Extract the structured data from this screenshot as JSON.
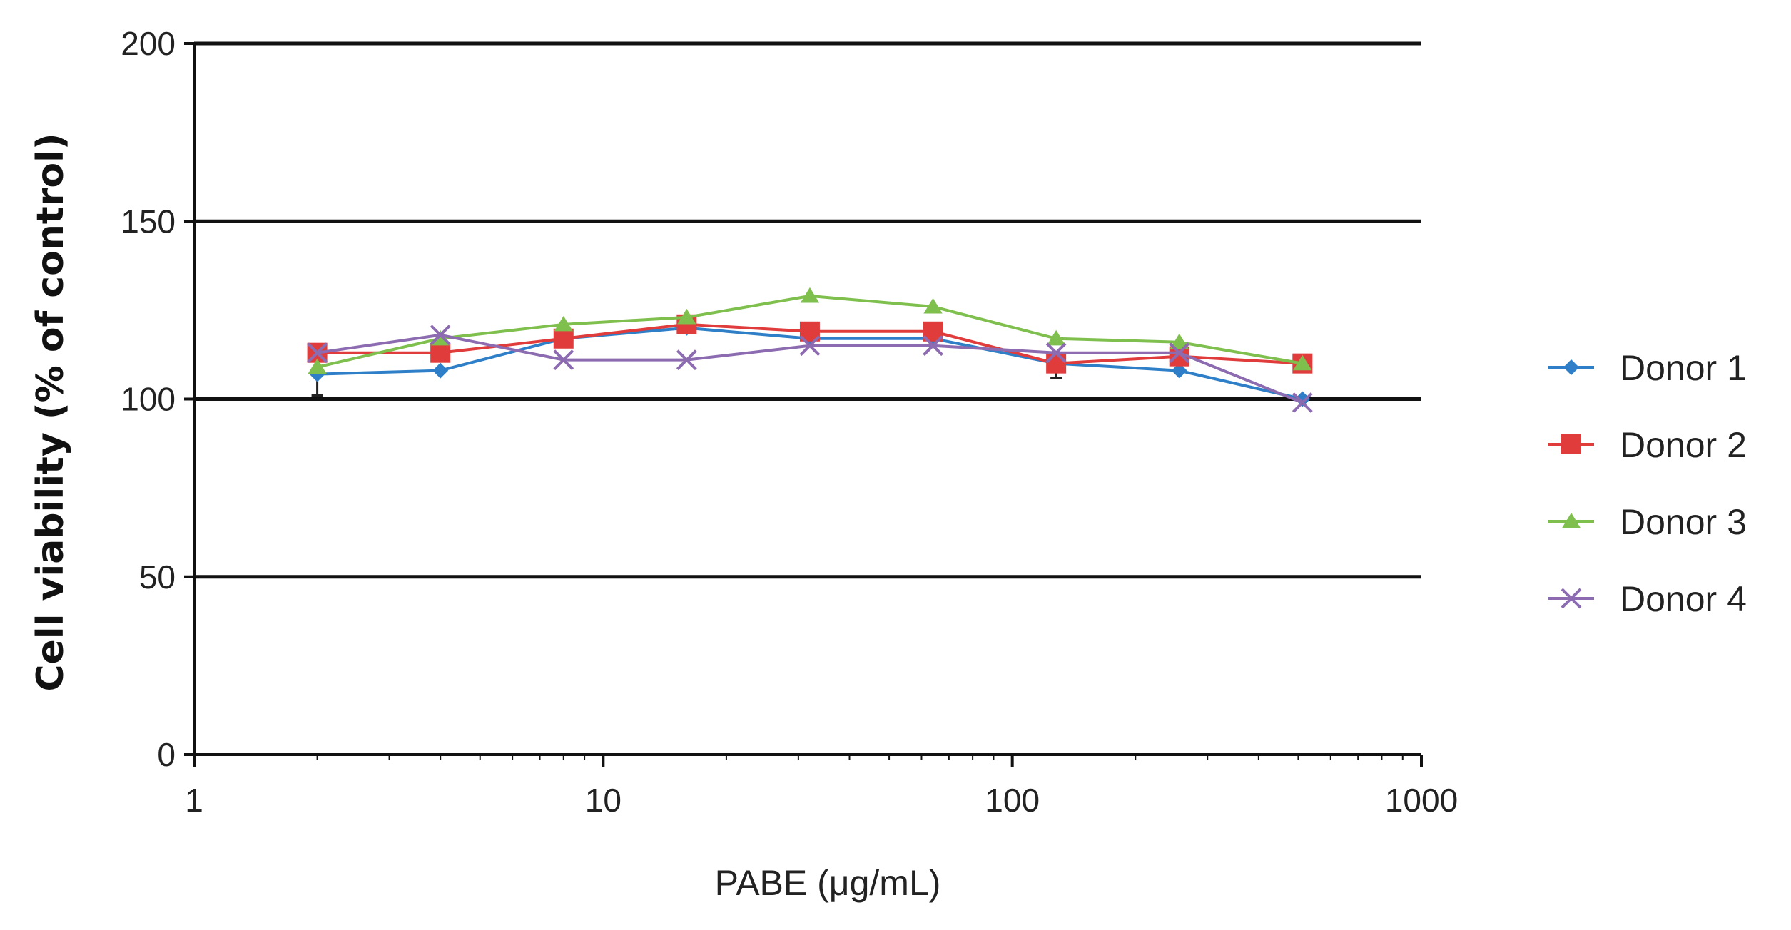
{
  "chart_data": {
    "type": "line",
    "title": "",
    "xlabel": "PABE (μg/mL)",
    "ylabel": "Cell viability (% of control)",
    "xscale": "log",
    "xlim": [
      1,
      1000
    ],
    "ylim": [
      0,
      200
    ],
    "xticks": [
      1,
      10,
      100,
      1000
    ],
    "xtick_labels": [
      "1",
      "10",
      "100",
      "1000"
    ],
    "yticks": [
      0,
      50,
      100,
      150,
      200
    ],
    "ytick_labels": [
      "0",
      "50",
      "100",
      "150",
      "200"
    ],
    "grid": "horizontal",
    "legend_position": "right",
    "series": [
      {
        "name": "Donor 1",
        "color": "#2e7fc7",
        "marker": "diamond",
        "x": [
          2,
          4,
          8,
          16,
          32,
          64,
          128,
          256,
          512
        ],
        "y": [
          107,
          108,
          117,
          120,
          117,
          117,
          110,
          108,
          100
        ],
        "error_low": [
          101,
          null,
          null,
          null,
          null,
          null,
          106,
          null,
          null
        ]
      },
      {
        "name": "Donor 2",
        "color": "#e03c3c",
        "marker": "square",
        "x": [
          2,
          4,
          8,
          16,
          32,
          64,
          128,
          256,
          512
        ],
        "y": [
          113,
          113,
          117,
          121,
          119,
          119,
          110,
          112,
          110
        ]
      },
      {
        "name": "Donor 3",
        "color": "#7fbf4d",
        "marker": "triangle",
        "x": [
          2,
          4,
          8,
          16,
          32,
          64,
          128,
          256,
          512
        ],
        "y": [
          109,
          117,
          121,
          123,
          129,
          126,
          117,
          116,
          110
        ]
      },
      {
        "name": "Donor 4",
        "color": "#8c6bb1",
        "marker": "x",
        "x": [
          2,
          4,
          8,
          16,
          32,
          64,
          128,
          256,
          512
        ],
        "y": [
          113,
          118,
          111,
          111,
          115,
          115,
          113,
          113,
          99
        ]
      }
    ]
  }
}
